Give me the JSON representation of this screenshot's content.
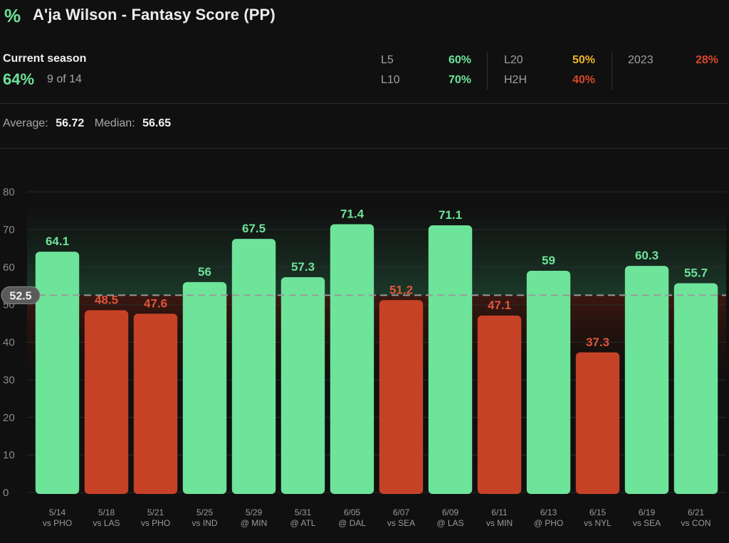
{
  "header": {
    "icon": "percent-icon",
    "title": "A'ja Wilson - Fantasy Score (PP)"
  },
  "season": {
    "label": "Current season",
    "percent": "64%",
    "count": "9 of 14"
  },
  "stats": {
    "l5_label": "L5",
    "l5_value": "60%",
    "l5_color": "#6ee39a",
    "l10_label": "L10",
    "l10_value": "70%",
    "l10_color": "#6ee39a",
    "l20_label": "L20",
    "l20_value": "50%",
    "l20_color": "#f0b429",
    "h2h_label": "H2H",
    "h2h_value": "40%",
    "h2h_color": "#d9462b",
    "y2023_label": "2023",
    "y2023_value": "28%",
    "y2023_color": "#d9462b"
  },
  "summary": {
    "average_label": "Average:",
    "average_value": "56.72",
    "median_label": "Median:",
    "median_value": "56.65"
  },
  "colors": {
    "over": "#6ee39a",
    "under": "#c64226",
    "line": "#9a9a9a"
  },
  "chart_data": {
    "type": "bar",
    "title": "A'ja Wilson - Fantasy Score (PP)",
    "line_value": 52.5,
    "line_label": "52.5",
    "ylim": [
      0,
      80
    ],
    "yticks": [
      0,
      10,
      20,
      30,
      40,
      50,
      60,
      70,
      80
    ],
    "categories": [
      {
        "date": "5/14",
        "opp": "vs PHO"
      },
      {
        "date": "5/18",
        "opp": "vs LAS"
      },
      {
        "date": "5/21",
        "opp": "vs PHO"
      },
      {
        "date": "5/25",
        "opp": "vs IND"
      },
      {
        "date": "5/29",
        "opp": "@ MIN"
      },
      {
        "date": "5/31",
        "opp": "@ ATL"
      },
      {
        "date": "6/05",
        "opp": "@ DAL"
      },
      {
        "date": "6/07",
        "opp": "vs SEA"
      },
      {
        "date": "6/09",
        "opp": "@ LAS"
      },
      {
        "date": "6/11",
        "opp": "vs MIN"
      },
      {
        "date": "6/13",
        "opp": "@ PHO"
      },
      {
        "date": "6/15",
        "opp": "vs NYL"
      },
      {
        "date": "6/19",
        "opp": "vs SEA"
      },
      {
        "date": "6/21",
        "opp": "vs CON"
      }
    ],
    "values": [
      64.1,
      48.5,
      47.6,
      56,
      67.5,
      57.3,
      71.4,
      51.2,
      71.1,
      47.1,
      59,
      37.3,
      60.3,
      55.7
    ],
    "value_labels": [
      "64.1",
      "48.5",
      "47.6",
      "56",
      "67.5",
      "57.3",
      "71.4",
      "51.2",
      "71.1",
      "47.1",
      "59",
      "37.3",
      "60.3",
      "55.7"
    ]
  }
}
